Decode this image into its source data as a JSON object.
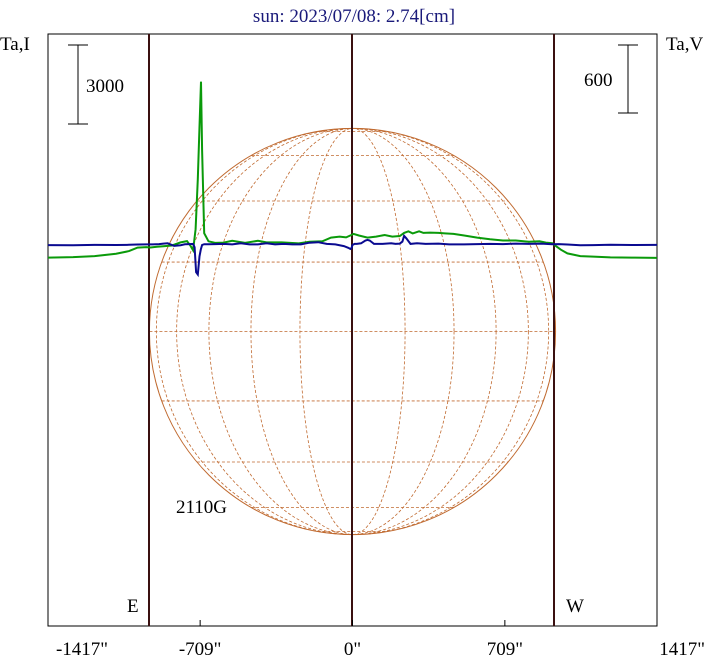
{
  "chart_data": {
    "type": "line",
    "title": "sun: 2023/07/08: 2.74[cm]",
    "left_axis_label": "Ta,I",
    "right_axis_label": "Ta,V",
    "left_scale_bar": "3000",
    "right_scale_bar": "600",
    "direction_left": "E",
    "direction_right": "W",
    "field_annotation": "2110G",
    "x_ticks": [
      "-1417\"",
      "-709\"",
      "0\"",
      "709\"",
      "1417\""
    ],
    "x_tick_values": [
      -1417,
      -709,
      0,
      709,
      1417
    ],
    "xlim": [
      -1417,
      1417
    ],
    "limb_arcsec": 945,
    "grid": false,
    "colors": {
      "intensity": "#0a9a0a",
      "polarization": "#0a0a90",
      "disk": "#c06a30",
      "limb_lines": "#3a1010",
      "title": "#1a1a7a"
    },
    "series": [
      {
        "name": "Ta,I",
        "x": [
          -1417,
          -1300,
          -1200,
          -1100,
          -1040,
          -1000,
          -960,
          -940,
          -910,
          -880,
          -840,
          -800,
          -770,
          -755,
          -742,
          -730,
          -720,
          -712,
          -705,
          -700,
          -690,
          -670,
          -640,
          -600,
          -560,
          -500,
          -440,
          -400,
          -330,
          -250,
          -200,
          -140,
          -100,
          -60,
          -30,
          -5,
          5,
          30,
          70,
          110,
          150,
          185,
          220,
          240,
          260,
          280,
          310,
          330,
          360,
          400,
          430,
          470,
          520,
          580,
          640,
          700,
          760,
          820,
          870,
          900,
          930,
          950,
          970,
          1000,
          1060,
          1120,
          1200,
          1300,
          1417
        ],
        "y": [
          -480,
          -460,
          -420,
          -330,
          -230,
          -100,
          -80,
          -95,
          -70,
          -50,
          -20,
          100,
          150,
          -20,
          -200,
          600,
          2500,
          4500,
          6200,
          3600,
          450,
          140,
          80,
          90,
          160,
          80,
          160,
          100,
          100,
          60,
          120,
          140,
          280,
          320,
          290,
          380,
          420,
          360,
          280,
          320,
          380,
          320,
          340,
          460,
          520,
          440,
          520,
          460,
          470,
          460,
          440,
          420,
          360,
          280,
          220,
          170,
          170,
          120,
          140,
          90,
          70,
          -60,
          -180,
          -320,
          -420,
          -440,
          -470,
          -480,
          -490
        ]
      },
      {
        "name": "Ta,V",
        "x": [
          -1417,
          -1300,
          -1200,
          -1100,
          -1040,
          -1000,
          -960,
          -930,
          -900,
          -880,
          -860,
          -830,
          -800,
          -780,
          -760,
          -742,
          -735,
          -728,
          -720,
          -712,
          -706,
          -700,
          -690,
          -670,
          -640,
          -600,
          -560,
          -520,
          -480,
          -440,
          -400,
          -360,
          -320,
          -280,
          -240,
          -200,
          -160,
          -120,
          -80,
          -40,
          -20,
          -10,
          -5,
          0,
          10,
          20,
          40,
          60,
          70,
          80,
          100,
          140,
          180,
          200,
          220,
          232,
          240,
          250,
          270,
          300,
          340,
          400,
          450,
          520,
          580,
          640,
          700,
          760,
          820,
          880,
          930,
          960,
          1000,
          1060,
          1120,
          1200,
          1300,
          1417
        ],
        "y": [
          -1,
          -2,
          1,
          0,
          2,
          4,
          5,
          5,
          8,
          12,
          15,
          -8,
          -2,
          6,
          8,
          10,
          -20,
          -240,
          -260,
          -100,
          -40,
          0,
          7,
          7,
          8,
          10,
          5,
          15,
          5,
          5,
          15,
          5,
          10,
          5,
          5,
          20,
          25,
          10,
          5,
          -10,
          -25,
          -35,
          -30,
          0,
          10,
          10,
          15,
          40,
          45,
          40,
          10,
          10,
          15,
          10,
          12,
          30,
          80,
          60,
          10,
          15,
          10,
          12,
          5,
          5,
          8,
          10,
          8,
          12,
          10,
          12,
          6,
          8,
          4,
          -2,
          -1,
          2,
          0,
          1
        ]
      }
    ]
  }
}
